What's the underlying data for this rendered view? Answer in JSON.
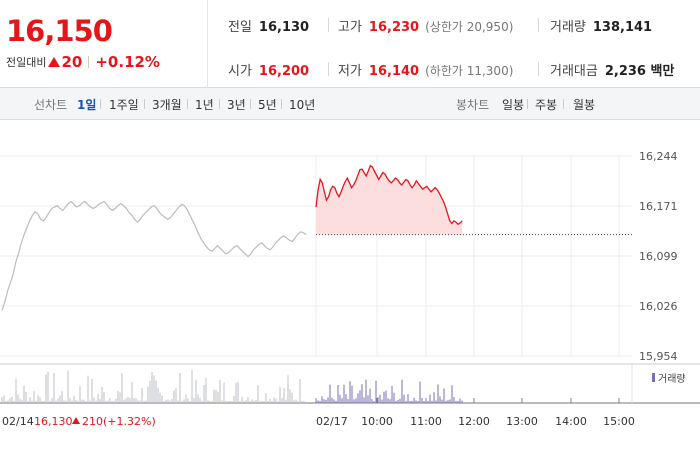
{
  "quote": {
    "price": "16,150",
    "change_label": "전일대비",
    "change_value": "20",
    "change_pct": "+0.12%"
  },
  "stats": {
    "prev_close": {
      "label": "전일",
      "value": "16,130"
    },
    "high": {
      "label": "고가",
      "value": "16,230",
      "sub": "(상한가 20,950)"
    },
    "volume": {
      "label": "거래량",
      "value": "138,141"
    },
    "open": {
      "label": "시가",
      "value": "16,200"
    },
    "low": {
      "label": "저가",
      "value": "16,140",
      "sub": "(하한가 11,300)"
    },
    "amount": {
      "label": "거래대금",
      "value": "2,236 백만"
    }
  },
  "tabs": {
    "line_label": "선차트",
    "line": [
      "1일",
      "1주일",
      "3개월",
      "1년",
      "3년",
      "5년",
      "10년"
    ],
    "active": "1일",
    "candle_label": "봉차트",
    "candle": [
      "일봉",
      "주봉",
      "월봉"
    ]
  },
  "chart_data": {
    "type": "line",
    "y_ticks": [
      "16,244",
      "16,171",
      "16,099",
      "16,026",
      "15,954"
    ],
    "ylim": [
      15954,
      16244
    ],
    "x_ticks": [
      "02/17",
      "10:00",
      "11:00",
      "12:00",
      "13:00",
      "14:00",
      "15:00"
    ],
    "prev_day": {
      "date": "02/14",
      "close": "16,130",
      "change": "210",
      "change_pct": "(+1.32%)"
    },
    "reference_line": 16130,
    "volume_legend": "거래량",
    "colors": {
      "up": "#e4151b",
      "prev": "#b9bcc1",
      "fill": "#fcdede",
      "volume": "#bcbfc4",
      "volume_today": "#7a6fb0"
    },
    "series": [
      {
        "values": [
          16020,
          16032,
          16048,
          16060,
          16072,
          16090,
          16103,
          16118,
          16130,
          16140,
          16150,
          16158,
          16163,
          16160,
          16152,
          16150,
          16155,
          16162,
          16168,
          16170,
          16172,
          16168,
          16165,
          16170,
          16175,
          16178,
          16174,
          16170,
          16172,
          16176,
          16178,
          16174,
          16170,
          16168,
          16170,
          16174,
          16176,
          16178,
          16173,
          16168,
          16165,
          16168,
          16172,
          16175,
          16172,
          16168,
          16162,
          16158,
          16152,
          16148,
          16152,
          16158,
          16162,
          16166,
          16170,
          16172,
          16168,
          16162,
          16158,
          16155,
          16152,
          16155,
          16160,
          16165,
          16170,
          16174,
          16172,
          16166,
          16158,
          16150,
          16142,
          16132,
          16124,
          16118,
          16112,
          16108,
          16106,
          16110,
          16114,
          16110,
          16106,
          16102,
          16104,
          16108,
          16112,
          16114,
          16110,
          16106,
          16102,
          16098,
          16102,
          16108,
          16112,
          16116,
          16118,
          16114,
          16110,
          16108,
          16112,
          16118,
          16122,
          16126,
          16128,
          16125,
          16122,
          16120,
          16125,
          16130,
          16134,
          16133,
          16130
        ]
      },
      {
        "values": [
          16170,
          16195,
          16210,
          16205,
          16192,
          16180,
          16185,
          16195,
          16200,
          16198,
          16190,
          16185,
          16192,
          16200,
          16207,
          16212,
          16205,
          16198,
          16202,
          16208,
          16216,
          16224,
          16225,
          16220,
          16215,
          16222,
          16230,
          16228,
          16222,
          16216,
          16210,
          16215,
          16220,
          16218,
          16212,
          16208,
          16205,
          16208,
          16212,
          16210,
          16205,
          16202,
          16206,
          16210,
          16208,
          16202,
          16198,
          16202,
          16208,
          16204,
          16200,
          16196,
          16198,
          16200,
          16196,
          16192,
          16195,
          16198,
          16195,
          16190,
          16184,
          16178,
          16170,
          16160,
          16150,
          16146,
          16150,
          16148,
          16145,
          16147,
          16150
        ]
      }
    ]
  }
}
